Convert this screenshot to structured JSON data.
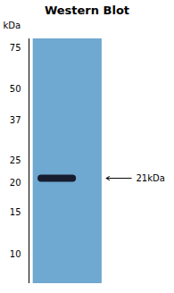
{
  "chart_data": {
    "type": "blot",
    "title": "Western Blot",
    "ylabel": "kDa",
    "log": "y",
    "ylim": [
      7.5,
      82
    ],
    "yticks": [
      75,
      50,
      37,
      25,
      20,
      15,
      10
    ],
    "band": 21,
    "band_label": "21kDa",
    "tick_labels": "y",
    "colors": [
      "#6fa8d0",
      "#111122"
    ]
  }
}
